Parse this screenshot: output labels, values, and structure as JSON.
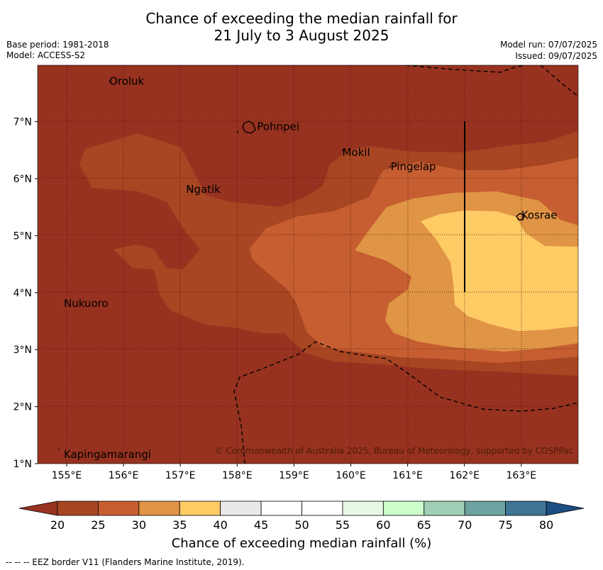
{
  "title_line1": "Chance of exceeding the median rainfall for",
  "title_line2": "21 July to 3 August 2025",
  "base_period": "Base period: 1981-2018",
  "model": "Model: ACCESS-S2",
  "model_run": "Model run: 07/07/2025",
  "issued": "Issued: 09/07/2025",
  "lat_ticks": [
    "1°N",
    "2°N",
    "3°N",
    "4°N",
    "5°N",
    "6°N",
    "7°N"
  ],
  "lon_ticks": [
    "155°E",
    "156°E",
    "157°E",
    "158°E",
    "159°E",
    "160°E",
    "161°E",
    "162°E",
    "163°E"
  ],
  "places": [
    {
      "name": "Oroluk",
      "lon": 155.75,
      "lat": 7.65
    },
    {
      "name": "Pohnpei",
      "lon": 158.35,
      "lat": 6.85
    },
    {
      "name": "Mokil",
      "lon": 159.85,
      "lat": 6.4
    },
    {
      "name": "Pingelap",
      "lon": 160.7,
      "lat": 6.15
    },
    {
      "name": "Ngatik",
      "lon": 157.1,
      "lat": 5.75
    },
    {
      "name": "Kosrae",
      "lon": 163.0,
      "lat": 5.3
    },
    {
      "name": "Nukuoro",
      "lon": 154.95,
      "lat": 3.75
    },
    {
      "name": "Kapingamarangi",
      "lon": 154.95,
      "lat": 1.1
    }
  ],
  "copyright": "© Commonwealth of Australia 2025, Bureau of Meteorology, supported by COSPPac",
  "colorbar": {
    "ticks": [
      "20",
      "25",
      "30",
      "35",
      "40",
      "45",
      "50",
      "55",
      "60",
      "65",
      "70",
      "75",
      "80"
    ],
    "colors": [
      "#983220",
      "#a84522",
      "#c65e31",
      "#e09445",
      "#fecb65",
      "#e9e9e9",
      "#ffffff",
      "#ffffff",
      "#e9f7e6",
      "#ccffcc",
      "#9fd0b5",
      "#6fa3a1",
      "#3f7495"
    ],
    "under_color": "#983220",
    "over_color": "#1b4e82",
    "label": "Chance of exceeding median rainfall (%)"
  },
  "footer": "--  --  -- EEZ border V11 (Flanders Marine Institute, 2019)."
}
